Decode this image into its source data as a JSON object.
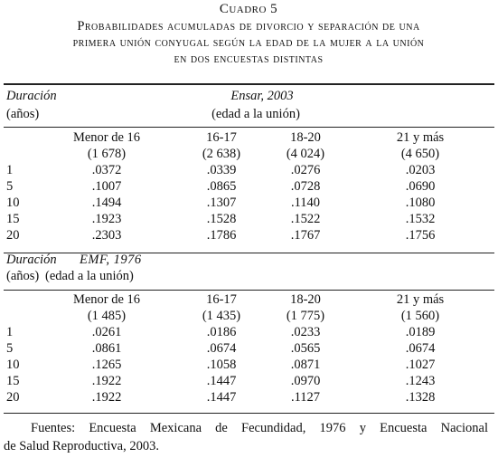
{
  "title": "Cuadro 5",
  "subtitle": [
    "Probabilidades acumuladas de divorcio y separación de una",
    "primera unión conyugal según la edad de la mujer a la unión",
    "en dos encuestas distintas"
  ],
  "sections": [
    {
      "heading": "Duración",
      "unit": "(años)",
      "survey": "Ensar, 2003",
      "subheading": "(edad a la unión)",
      "columns": [
        "Menor de 16",
        "16-17",
        "18-20",
        "21 y más"
      ],
      "counts": [
        "(1 678)",
        "(2 638)",
        "(4 024)",
        "(4 650)"
      ],
      "rows": [
        [
          "1",
          ".0372",
          ".0339",
          ".0276",
          ".0203"
        ],
        [
          "5",
          ".1007",
          ".0865",
          ".0728",
          ".0690"
        ],
        [
          "10",
          ".1494",
          ".1307",
          ".1140",
          ".1080"
        ],
        [
          "15",
          ".1923",
          ".1528",
          ".1522",
          ".1532"
        ],
        [
          "20",
          ".2303",
          ".1786",
          ".1767",
          ".1756"
        ]
      ]
    },
    {
      "heading": "Duración",
      "unit": "(años)",
      "survey": "EMF, 1976",
      "subheading": "(edad a la unión)",
      "columns": [
        "Menor de 16",
        "16-17",
        "18-20",
        "21 y más"
      ],
      "counts": [
        "(1 485)",
        "(1 435)",
        "(1 775)",
        "(1 560)"
      ],
      "rows": [
        [
          "1",
          ".0261",
          ".0186",
          ".0233",
          ".0189"
        ],
        [
          "5",
          ".0861",
          ".0674",
          ".0565",
          ".0674"
        ],
        [
          "10",
          ".1265",
          ".1058",
          ".0871",
          ".1027"
        ],
        [
          "15",
          ".1922",
          ".1447",
          ".0970",
          ".1243"
        ],
        [
          "20",
          ".1922",
          ".1447",
          ".1127",
          ".1328"
        ]
      ]
    }
  ],
  "source": [
    "Fuentes: Encuesta Mexicana de Fecundidad, 1976 y Encuesta Nacional",
    "de Salud Reproductiva, 2003."
  ]
}
